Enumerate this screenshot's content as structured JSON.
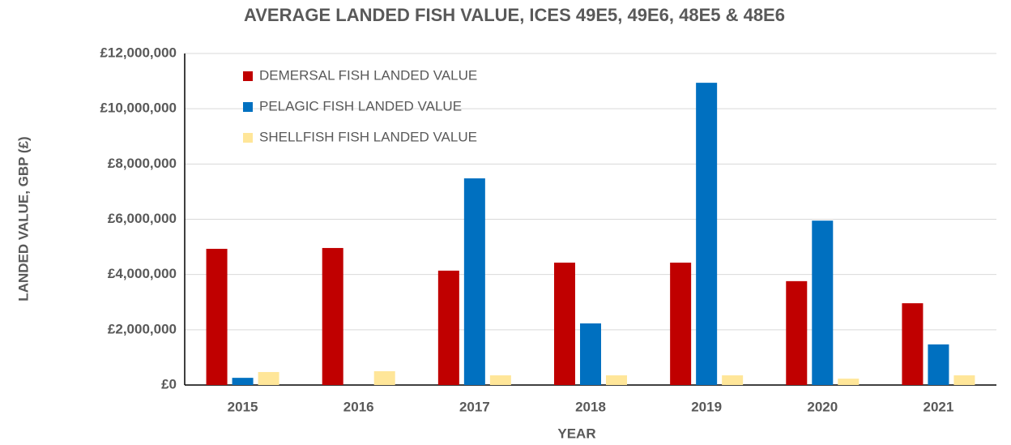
{
  "chart_data": {
    "type": "bar",
    "title": "AVERAGE LANDED FISH VALUE, ICES 49E5, 49E6, 48E5 & 48E6",
    "x_label": "YEAR",
    "y_label": "LANDED VALUE, GBP (£)",
    "categories": [
      "2015",
      "2016",
      "2017",
      "2018",
      "2019",
      "2020",
      "2021"
    ],
    "series": [
      {
        "name": "DEMERSAL FISH LANDED VALUE",
        "color": "#c00000",
        "values": [
          4930000,
          4960000,
          4140000,
          4430000,
          4430000,
          3760000,
          2960000
        ]
      },
      {
        "name": "PELAGIC FISH LANDED VALUE",
        "color": "#0070c0",
        "values": [
          260000,
          0,
          7480000,
          2230000,
          10940000,
          5950000,
          1470000
        ]
      },
      {
        "name": "SHELLFISH FISH LANDED VALUE",
        "color": "#ffe699",
        "values": [
          470000,
          500000,
          350000,
          350000,
          350000,
          230000,
          350000
        ]
      }
    ],
    "ylim": [
      0,
      12000000
    ],
    "yticks": [
      {
        "value": 0,
        "label": "£0"
      },
      {
        "value": 2000000,
        "label": "£2,000,000"
      },
      {
        "value": 4000000,
        "label": "£4,000,000"
      },
      {
        "value": 6000000,
        "label": "£6,000,000"
      },
      {
        "value": 8000000,
        "label": "£8,000,000"
      },
      {
        "value": 10000000,
        "label": "£10,000,000"
      },
      {
        "value": 12000000,
        "label": "£12,000,000"
      }
    ],
    "grid": true,
    "legend": "top-left"
  }
}
